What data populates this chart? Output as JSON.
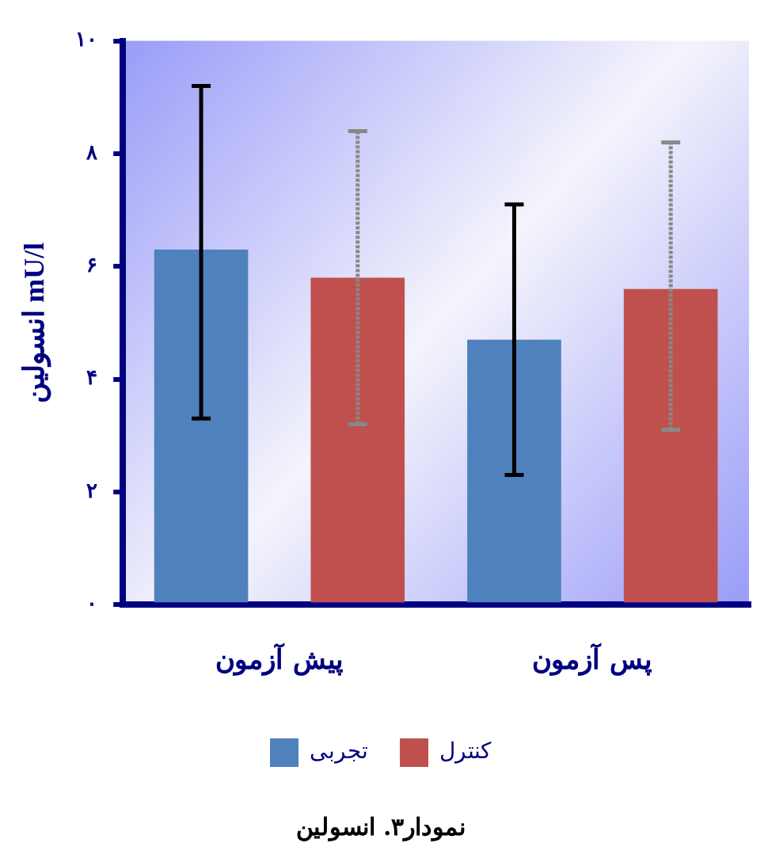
{
  "chart_data": {
    "type": "bar",
    "title": "نمودار۳. انسولین",
    "ylabel": "انسولین mU/l",
    "categories": [
      "پیش آزمون",
      "پس آزمون"
    ],
    "series": [
      {
        "name": "تجربی",
        "color": "#4f81bd",
        "values": [
          6.3,
          4.7
        ],
        "errors": [
          [
            3.3,
            9.2
          ],
          [
            2.3,
            7.1
          ]
        ]
      },
      {
        "name": "کنترل",
        "color": "#c0504d",
        "values": [
          5.8,
          5.6
        ],
        "errors": [
          [
            3.2,
            8.4
          ],
          [
            3.1,
            8.2
          ]
        ]
      }
    ],
    "ylim": [
      0,
      10
    ],
    "yticks": [
      {
        "value": 0,
        "label": "۰"
      },
      {
        "value": 2,
        "label": "۲"
      },
      {
        "value": 4,
        "label": "۴"
      },
      {
        "value": 6,
        "label": "۶"
      },
      {
        "value": 8,
        "label": "۸"
      },
      {
        "value": 10,
        "label": "۱۰"
      }
    ],
    "grid": false,
    "legend": "bottom"
  }
}
